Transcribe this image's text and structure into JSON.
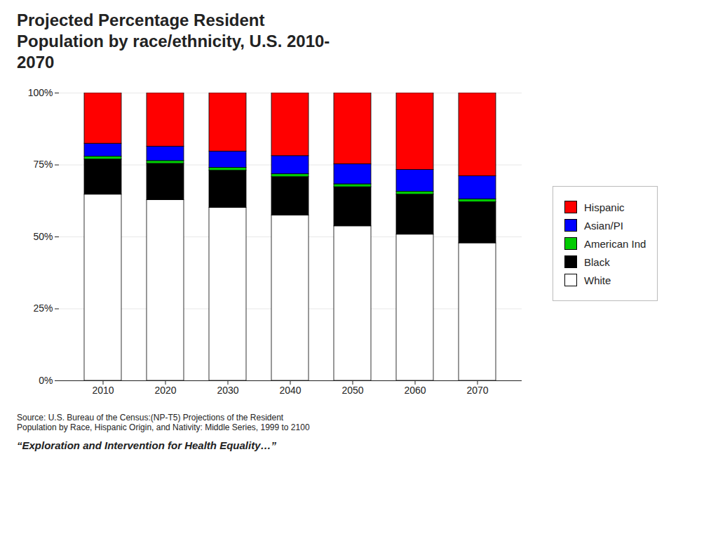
{
  "chart_data": {
    "type": "bar",
    "title": "Projected Percentage Resident\nPopulation by race/ethnicity, U.S. 2010-\n2070",
    "categories": [
      "2010",
      "2020",
      "2030",
      "2040",
      "2050",
      "2060",
      "2070"
    ],
    "series": [
      {
        "name": "White",
        "color": "#ffffff",
        "values": [
          64.7,
          62.8,
          60.1,
          57.5,
          53.7,
          50.8,
          47.8
        ]
      },
      {
        "name": "Black",
        "color": "#000000",
        "values": [
          12.2,
          12.6,
          12.9,
          13.3,
          13.6,
          13.9,
          14.3
        ]
      },
      {
        "name": "American Ind",
        "color": "#00cc00",
        "values": [
          1.0,
          1.0,
          1.0,
          1.0,
          1.0,
          1.0,
          1.0
        ]
      },
      {
        "name": "Asian/PI",
        "color": "#0000ff",
        "values": [
          4.5,
          5.0,
          5.7,
          6.3,
          7.0,
          7.6,
          8.0
        ]
      },
      {
        "name": "Hispanic",
        "color": "#ff0000",
        "values": [
          17.6,
          18.6,
          20.3,
          21.9,
          24.7,
          26.7,
          28.9
        ]
      }
    ],
    "stacked": true,
    "ylim": [
      0,
      100
    ],
    "yticks": [
      {
        "value": 0,
        "label": "0%"
      },
      {
        "value": 25,
        "label": "25%"
      },
      {
        "value": 50,
        "label": "50%"
      },
      {
        "value": 75,
        "label": "75%"
      },
      {
        "value": 100,
        "label": "100%"
      }
    ],
    "grid": true,
    "legend": "right",
    "annotations": [
      "Source: U.S. Bureau of the Census:(NP-T5) Projections of the Resident\nPopulation by Race, Hispanic Origin, and Nativity: Middle Series, 1999 to 2100",
      "“Exploration and Intervention for Health Equality…”"
    ]
  }
}
